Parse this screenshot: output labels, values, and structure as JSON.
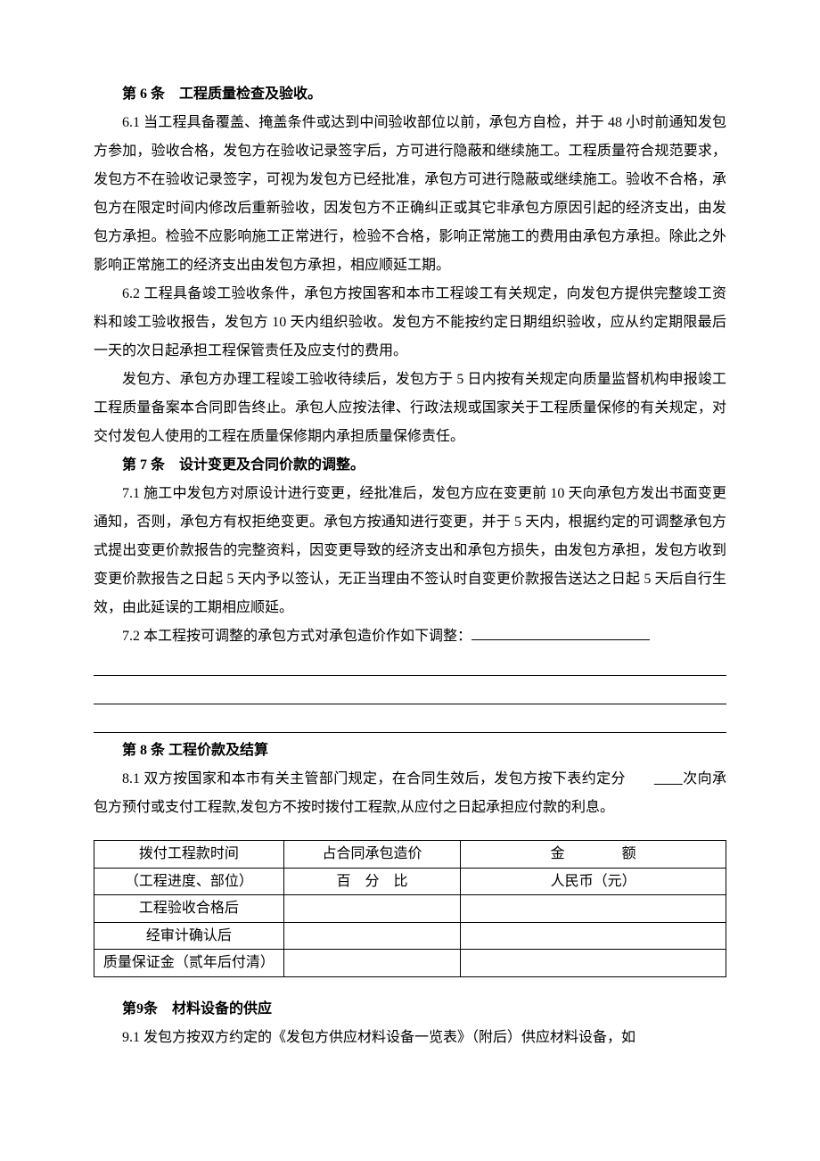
{
  "article6": {
    "title": "第 6 条　工程质量检查及验收。",
    "p61": "6.1 当工程具备覆盖、掩盖条件或达到中间验收部位以前，承包方自检，并于 48 小时前通知发包方参加，验收合格，发包方在验收记录签字后，方可进行隐蔽和继续施工。工程质量符合规范要求，发包方不在验收记录签字，可视为发包方已经批准，承包方可进行隐蔽或继续施工。验收不合格，承包方在限定时间内修改后重新验收，因发包方不正确纠正或其它非承包方原因引起的经济支出，由发包方承担。检验不应影响施工正常进行，检验不合格，影响正常施工的费用由承包方承担。除此之外影响正常施工的经济支出由发包方承担，相应顺延工期。",
    "p62": "6.2 工程具备竣工验收条件，承包方按国客和本市工程竣工有关规定，向发包方提供完整竣工资料和竣工验收报告，发包方 10 天内组织验收。发包方不能按约定日期组织验收，应从约定期限最后一天的次日起承担工程保管责任及应支付的费用。",
    "p62b": "发包方、承包方办理工程竣工验收待续后，发包方于 5 日内按有关规定向质量监督机构申报竣工工程质量备案本合同即告终止。承包人应按法律、行政法规或国家关于工程质量保修的有关规定，对交付发包人使用的工程在质量保修期内承担质量保修责任。"
  },
  "article7": {
    "title": "第 7 条　设计变更及合同价款的调整。",
    "p71": "7.1 施工中发包方对原设计进行变更，经批准后，发包方应在变更前 10 天向承包方发出书面变更通知，否则，承包方有权拒绝变更。承包方按通知进行变更，并于 5 天内，根据约定的可调整承包方式提出变更价款报告的完整资料，因变更导致的经济支出和承包方损失，由发包方承担，发包方收到变更价款报告之日起 5 天内予以签认，无正当理由不签认时自变更价款报告送达之日起 5 天后自行生效，由此延误的工期相应顺延。",
    "p72": "7.2 本工程按可调整的承包方式对承包造价作如下调整："
  },
  "article8": {
    "title": "第 8 条  工程价款及结算",
    "p81_pre": "8.1 双方按国家和本市有关主管部门规定，在合同生效后，发包方按下表约定分",
    "p81_post": "次向承包方预付或支付工程款,发包方不按时拨付工程款,从应付之日起承担应付款的利息。",
    "table": {
      "header1_line1": "拨付工程款时间",
      "header1_line2": "（工程进度、部位）",
      "header2_line1": "占合同承包造价",
      "header2_line2": "百　分　比",
      "header3_line1": "金　　　　额",
      "header3_line2": "人民币（元）",
      "row1": "工程验收合格后",
      "row2": "经审计确认后",
      "row3": "质量保证金（贰年后付清）"
    }
  },
  "article9": {
    "title": "第9条　材料设备的供应",
    "p91": "9.1 发包方按双方约定的《发包方供应材料设备一览表》（附后）供应材料设备，如"
  }
}
